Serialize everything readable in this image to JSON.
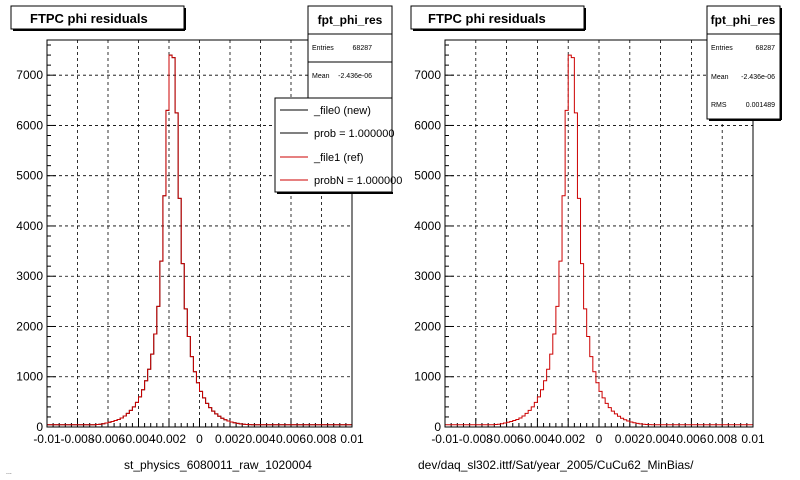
{
  "panels": [
    {
      "title": "FTPC phi residuals",
      "xlabel": "st_physics_6080011_raw_1020004",
      "stats": {
        "name": "fpt_phi_res",
        "rows": [
          {
            "label": "Entries",
            "value": "68287"
          },
          {
            "label": "Mean",
            "value": "-2.436e-06"
          }
        ]
      },
      "legend": [
        {
          "label": "_file0 (new)",
          "color": "#000000"
        },
        {
          "label": "prob = 1.000000",
          "color": "#000000"
        },
        {
          "label": "_file1 (ref)",
          "color": "#cc0000"
        },
        {
          "label": "probN = 1.000000",
          "color": "#cc0000"
        }
      ]
    },
    {
      "title": "FTPC phi residuals",
      "xlabel": "dev/daq_sl302.ittf/Sat/year_2005/CuCu62_MinBias/",
      "stats": {
        "name": "fpt_phi_res",
        "rows": [
          {
            "label": "Entries",
            "value": "68287"
          },
          {
            "label": "Mean",
            "value": "-2.436e-06"
          },
          {
            "label": "RMS",
            "value": "0.001489"
          }
        ]
      },
      "legend": []
    }
  ],
  "footer": "...",
  "chart_data": [
    {
      "type": "bar",
      "title": "FTPC phi residuals",
      "xlabel": "st_physics_6080011_raw_1020004",
      "ylabel": "",
      "xlim": [
        -0.01,
        0.01
      ],
      "ylim": [
        0,
        7700
      ],
      "grid": true,
      "x_ticks": [
        "-0.01",
        "-0.008",
        "-0.006",
        "-0.004",
        "-0.002",
        "0",
        "0.002",
        "0.004",
        "0.006",
        "0.008",
        "0.01"
      ],
      "y_ticks": [
        0,
        1000,
        2000,
        3000,
        4000,
        5000,
        6000,
        7000
      ],
      "bin_width": 0.0002,
      "series": [
        {
          "name": "_file0 (new)",
          "color": "#000000",
          "values": [
            45,
            45,
            45,
            45,
            45,
            45,
            45,
            45,
            45,
            45,
            45,
            45,
            45,
            45,
            45,
            45,
            50,
            55,
            65,
            80,
            95,
            110,
            130,
            150,
            180,
            220,
            270,
            330,
            400,
            490,
            600,
            740,
            920,
            1150,
            1450,
            1850,
            2400,
            3300,
            4600,
            6300,
            7400,
            7350,
            6250,
            4550,
            3250,
            2350,
            1800,
            1400,
            1100,
            880,
            710,
            580,
            470,
            385,
            315,
            260,
            215,
            175,
            145,
            120,
            100,
            85,
            72,
            62,
            55,
            50,
            48,
            46,
            45,
            45,
            45,
            45,
            45,
            45,
            45,
            45,
            45,
            45,
            45,
            45,
            45,
            45,
            45,
            45,
            45,
            45,
            45,
            45,
            45,
            45,
            45,
            45,
            45,
            45,
            45,
            45,
            45,
            45,
            45,
            45
          ]
        },
        {
          "name": "_file1 (ref)",
          "color": "#cc0000",
          "values": [
            45,
            45,
            45,
            45,
            45,
            45,
            45,
            45,
            45,
            45,
            45,
            45,
            45,
            45,
            45,
            45,
            50,
            55,
            65,
            80,
            95,
            110,
            130,
            150,
            180,
            220,
            270,
            330,
            400,
            490,
            600,
            740,
            920,
            1150,
            1450,
            1850,
            2400,
            3300,
            4600,
            6300,
            7400,
            7350,
            6250,
            4550,
            3250,
            2350,
            1800,
            1400,
            1100,
            880,
            710,
            580,
            470,
            385,
            315,
            260,
            215,
            175,
            145,
            120,
            100,
            85,
            72,
            62,
            55,
            50,
            48,
            46,
            45,
            45,
            45,
            45,
            45,
            45,
            45,
            45,
            45,
            45,
            45,
            45,
            45,
            45,
            45,
            45,
            45,
            45,
            45,
            45,
            45,
            45,
            45,
            45,
            45,
            45,
            45,
            45,
            45,
            45,
            45,
            45
          ]
        }
      ]
    },
    {
      "type": "bar",
      "title": "FTPC phi residuals",
      "xlabel": "dev/daq_sl302.ittf/Sat/year_2005/CuCu62_MinBias/",
      "ylabel": "",
      "xlim": [
        -0.01,
        0.01
      ],
      "ylim": [
        0,
        7700
      ],
      "grid": true,
      "x_ticks": [
        "-0.01",
        "-0.008",
        "-0.006",
        "-0.004",
        "-0.002",
        "0",
        "0.002",
        "0.004",
        "0.006",
        "0.008",
        "0.01"
      ],
      "y_ticks": [
        0,
        1000,
        2000,
        3000,
        4000,
        5000,
        6000,
        7000
      ],
      "bin_width": 0.0002,
      "series": [
        {
          "name": "",
          "color": "#cc0000",
          "values": [
            45,
            45,
            45,
            45,
            45,
            45,
            45,
            45,
            45,
            45,
            45,
            45,
            45,
            45,
            45,
            45,
            50,
            55,
            65,
            80,
            95,
            110,
            130,
            150,
            180,
            220,
            270,
            330,
            400,
            490,
            600,
            740,
            920,
            1150,
            1450,
            1850,
            2400,
            3300,
            4600,
            6300,
            7400,
            7350,
            6250,
            4550,
            3250,
            2350,
            1800,
            1400,
            1100,
            880,
            710,
            580,
            470,
            385,
            315,
            260,
            215,
            175,
            145,
            120,
            100,
            85,
            72,
            62,
            55,
            50,
            48,
            46,
            45,
            45,
            45,
            45,
            45,
            45,
            45,
            45,
            45,
            45,
            45,
            45,
            45,
            45,
            45,
            45,
            45,
            45,
            45,
            45,
            45,
            45,
            45,
            45,
            45,
            45,
            45,
            45,
            45,
            45,
            45,
            45
          ]
        }
      ]
    }
  ]
}
